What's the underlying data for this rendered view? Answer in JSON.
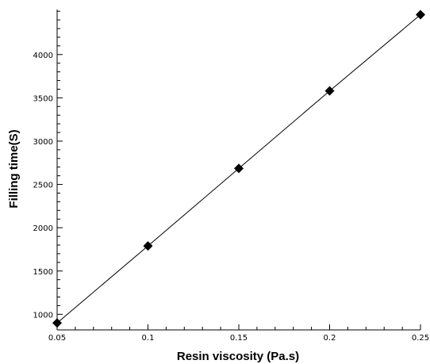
{
  "chart_data": {
    "type": "line",
    "xlabel": "Resin viscosity (Pa.s)",
    "ylabel": "Filling time(S)",
    "xlim": [
      0.05,
      0.25
    ],
    "ylim": [
      820,
      4520
    ],
    "x_ticks": [
      "0.05",
      "0.1",
      "0.15",
      "0.2",
      "0.25"
    ],
    "y_ticks": [
      "1000",
      "1500",
      "2000",
      "2500",
      "3000",
      "3500",
      "4000"
    ],
    "grid": false,
    "legend": "none",
    "series": [
      {
        "x": [
          0.05,
          0.1,
          0.15,
          0.2,
          0.25
        ],
        "y": [
          900,
          1790,
          2685,
          3580,
          4460
        ],
        "marker": "diamond",
        "color": "#000000"
      }
    ]
  }
}
